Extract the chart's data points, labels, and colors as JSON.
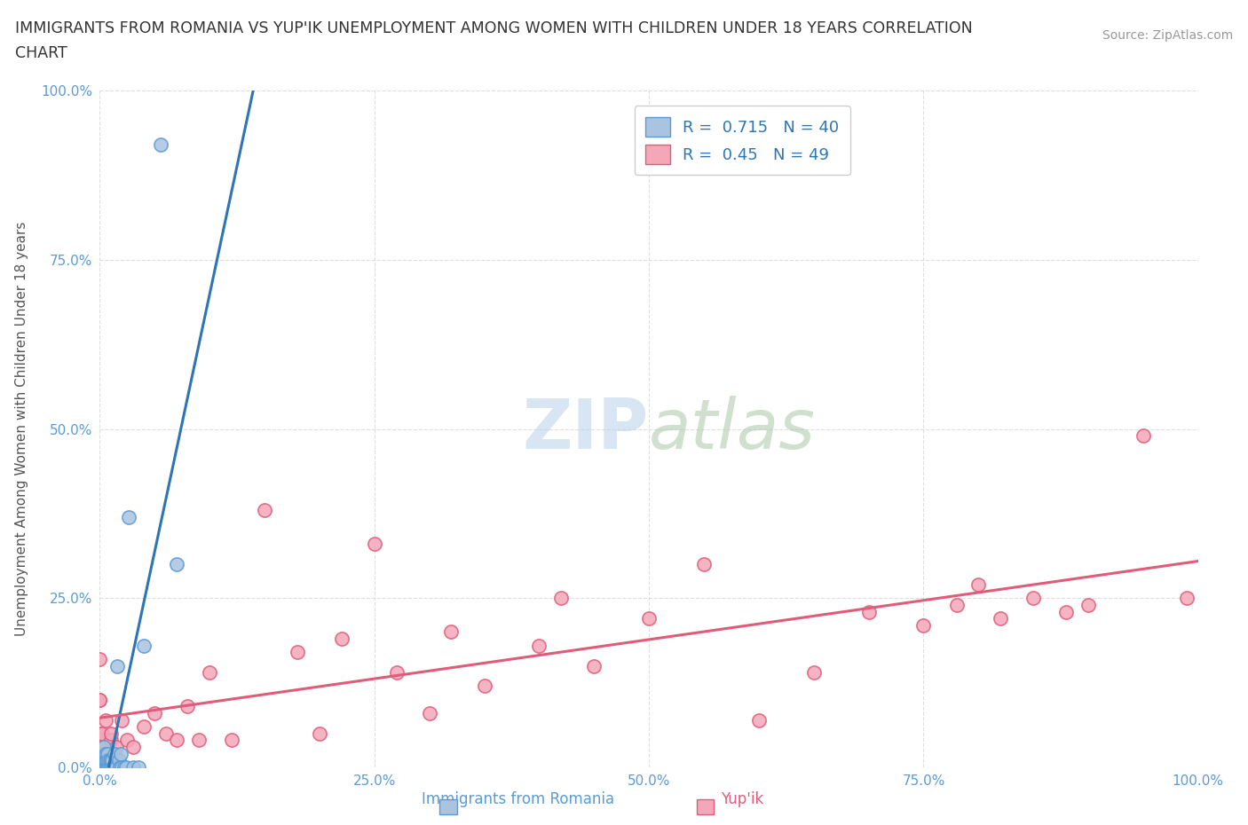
{
  "title_line1": "IMMIGRANTS FROM ROMANIA VS YUP'IK UNEMPLOYMENT AMONG WOMEN WITH CHILDREN UNDER 18 YEARS CORRELATION",
  "title_line2": "CHART",
  "source": "Source: ZipAtlas.com",
  "ylabel": "Unemployment Among Women with Children Under 18 years",
  "xlim": [
    0.0,
    1.0
  ],
  "ylim": [
    0.0,
    1.0
  ],
  "xticks": [
    0.0,
    0.25,
    0.5,
    0.75,
    1.0
  ],
  "yticks": [
    0.0,
    0.25,
    0.5,
    0.75,
    1.0
  ],
  "xticklabels": [
    "0.0%",
    "25.0%",
    "50.0%",
    "75.0%",
    "100.0%"
  ],
  "yticklabels": [
    "0.0%",
    "25.0%",
    "50.0%",
    "75.0%",
    "100.0%"
  ],
  "romania_color": "#a8c4e0",
  "romania_edge_color": "#5b9bd5",
  "yupik_color": "#f4a7b9",
  "yupik_edge_color": "#e05c7a",
  "trend_romania_color": "#2e75b6",
  "trend_yupik_color": "#e05c7a",
  "R_romania": 0.715,
  "N_romania": 40,
  "R_yupik": 0.45,
  "N_yupik": 49,
  "background_color": "#ffffff",
  "grid_color": "#d0d0d0",
  "romania_x": [
    0.003,
    0.003,
    0.003,
    0.004,
    0.004,
    0.004,
    0.004,
    0.005,
    0.005,
    0.005,
    0.006,
    0.006,
    0.007,
    0.007,
    0.008,
    0.008,
    0.009,
    0.009,
    0.01,
    0.01,
    0.01,
    0.011,
    0.012,
    0.013,
    0.013,
    0.014,
    0.015,
    0.016,
    0.017,
    0.018,
    0.019,
    0.02,
    0.022,
    0.024,
    0.026,
    0.03,
    0.035,
    0.04,
    0.055,
    0.07
  ],
  "romania_y": [
    0.0,
    0.0,
    0.01,
    0.0,
    0.01,
    0.02,
    0.03,
    0.0,
    0.01,
    0.02,
    0.0,
    0.01,
    0.0,
    0.02,
    0.0,
    0.01,
    0.0,
    0.01,
    0.0,
    0.0,
    0.01,
    0.01,
    0.0,
    0.0,
    0.02,
    0.0,
    0.0,
    0.15,
    0.01,
    0.0,
    0.02,
    0.0,
    0.0,
    0.0,
    0.37,
    0.0,
    0.0,
    0.18,
    0.92,
    0.3
  ],
  "yupik_x": [
    0.0,
    0.0,
    0.0,
    0.0,
    0.0,
    0.0,
    0.002,
    0.003,
    0.005,
    0.01,
    0.01,
    0.015,
    0.02,
    0.025,
    0.03,
    0.04,
    0.05,
    0.06,
    0.07,
    0.08,
    0.09,
    0.1,
    0.12,
    0.15,
    0.18,
    0.2,
    0.22,
    0.25,
    0.27,
    0.3,
    0.32,
    0.35,
    0.4,
    0.42,
    0.45,
    0.5,
    0.55,
    0.6,
    0.65,
    0.7,
    0.75,
    0.78,
    0.8,
    0.82,
    0.85,
    0.88,
    0.9,
    0.95,
    0.99
  ],
  "yupik_y": [
    0.04,
    0.04,
    0.05,
    0.1,
    0.1,
    0.16,
    0.05,
    0.03,
    0.07,
    0.04,
    0.05,
    0.03,
    0.07,
    0.04,
    0.03,
    0.06,
    0.08,
    0.05,
    0.04,
    0.09,
    0.04,
    0.14,
    0.04,
    0.38,
    0.17,
    0.05,
    0.19,
    0.33,
    0.14,
    0.08,
    0.2,
    0.12,
    0.18,
    0.25,
    0.15,
    0.22,
    0.3,
    0.07,
    0.14,
    0.23,
    0.21,
    0.24,
    0.27,
    0.22,
    0.25,
    0.23,
    0.24,
    0.49,
    0.25
  ]
}
